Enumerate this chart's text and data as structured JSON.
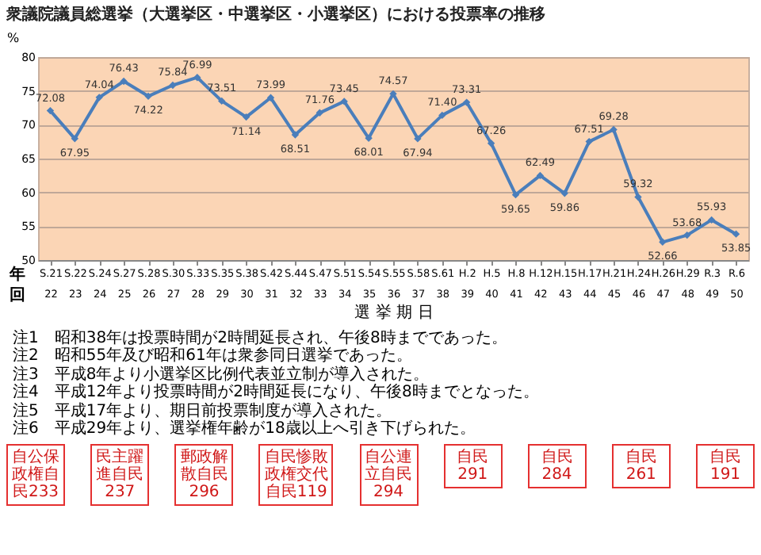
{
  "chart_data": {
    "type": "line",
    "title": "衆議院議員総選挙（大選挙区・中選挙区・小選挙区）における投票率の推移",
    "ylabel": "%",
    "xlabel": "選 挙 期 日",
    "categories": [
      "S.21\n22",
      "S.22\n23",
      "S.24\n24",
      "S.27\n25",
      "S.28\n26",
      "S.30\n27",
      "S.33\n28",
      "S.35\n29",
      "S.38\n30",
      "S.42\n31",
      "S.44\n32",
      "S.47\n33",
      "S.51\n34",
      "S.54\n35",
      "S.55\n36",
      "S.58\n37",
      "S.61\n38",
      "H.2\n39",
      "H.5\n40",
      "H.8\n41",
      "H.12\n42",
      "H.15\n43",
      "H.17\n44",
      "H.21\n45",
      "H.24\n46",
      "H.26\n47",
      "H.29\n48",
      "R.3\n49",
      "R.6\n50"
    ],
    "series": [
      {
        "color": "#4a7ebb",
        "values": [
          72.08,
          67.95,
          74.04,
          76.43,
          74.22,
          75.84,
          76.99,
          73.51,
          71.14,
          73.99,
          68.51,
          71.76,
          73.45,
          68.01,
          74.57,
          67.94,
          71.4,
          73.31,
          67.26,
          59.65,
          62.49,
          59.86,
          67.51,
          69.28,
          59.32,
          52.66,
          53.68,
          55.93,
          53.85
        ]
      }
    ],
    "ylim": [
      50,
      80
    ],
    "yticks": [
      50,
      55,
      60,
      65,
      70,
      75,
      80
    ],
    "grid": "y",
    "marker": "diamond",
    "line_style": "solid",
    "value_labels": [
      "72.08",
      "67.95",
      "74.04",
      "76.43",
      "74.22",
      "75.84",
      "76.99",
      "73.51",
      "71.14",
      "73.99",
      "68.51",
      "71.76",
      "73.45",
      "68.01",
      "74.57",
      "67.94",
      "71.40",
      "73.31",
      "67.26",
      "59.65",
      "62.49",
      "59.86",
      "67.51",
      "69.28",
      "59.32",
      "52.66",
      "53.68",
      "55.93",
      "53.85"
    ],
    "annotations": [
      "年",
      "回",
      "注1　昭和38年は投票時間が2時間延長され、午後8時までであった。",
      "注2　昭和55年及び昭和61年は衆参同日選挙であった。",
      "注3　平成8年より小選挙区比例代表並立制が導入された。",
      "注4　平成12年より投票時間が2時間延長になり、午後8時までとなった。",
      "注5　平成17年より、期日前投票制度が導入された。",
      "注6　平成29年より、選挙権年齢が18歳以上へ引き下げられた。",
      "自公保政権自民233",
      "民主躍進自民237",
      "郵政解散自民296",
      "自民惨敗政権交代自民119",
      "自公連立自民294",
      "自民291",
      "自民284",
      "自民261",
      "自民191"
    ]
  }
}
